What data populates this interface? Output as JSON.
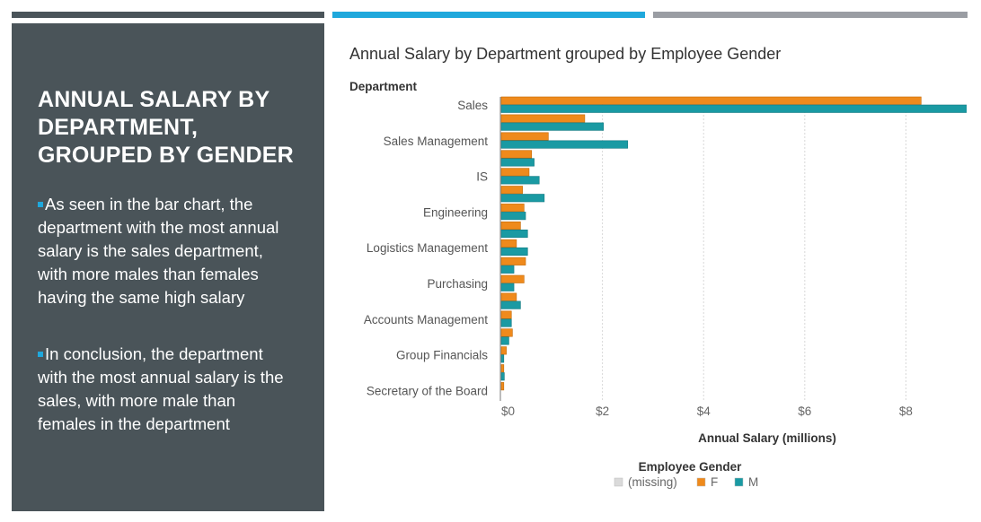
{
  "theme": {
    "panel_bg": "#4a5459",
    "accent_dark": "#4a5459",
    "accent_blue": "#1fa8dc",
    "accent_gray": "#9a9da3",
    "bullet_color": "#1fa8dc",
    "series_colors": {
      "missing": "#dadada",
      "F": "#ef8a1c",
      "M": "#1a9aa3"
    }
  },
  "left": {
    "title": "ANNUAL SALARY BY DEPARTMENT, GROUPED BY GENDER",
    "bullets": [
      "As seen in the bar chart, the department with the most annual salary is the sales department, with more males than females having the same high salary",
      "In conclusion, the department with the most annual salary is the sales, with more male than females in the department"
    ]
  },
  "chart_data": {
    "type": "bar",
    "orientation": "horizontal",
    "title": "Annual Salary by Department grouped by Employee Gender",
    "ylabel": "Department",
    "xlabel": "Annual Salary (millions)",
    "xlim": [
      0,
      9.2
    ],
    "xticks": [
      0,
      2,
      4,
      6,
      8
    ],
    "xtick_labels": [
      "$0",
      "$2",
      "$4",
      "$6",
      "$8"
    ],
    "grid": "vertical",
    "legend_title": "Employee Gender",
    "legend_position": "bottom",
    "legend": [
      "(missing)",
      "F",
      "M"
    ],
    "categories": [
      "Sales",
      "",
      "Sales Management",
      "",
      "IS",
      "",
      "Engineering",
      "",
      "Logistics Management",
      "",
      "Purchasing",
      "",
      "Accounts Management",
      "",
      "Group Financials",
      "",
      "Secretary of the Board"
    ],
    "series": [
      {
        "name": "F",
        "values": [
          8.3,
          1.65,
          0.93,
          0.6,
          0.55,
          0.42,
          0.45,
          0.38,
          0.3,
          0.48,
          0.45,
          0.3,
          0.2,
          0.22,
          0.1,
          0.05,
          0.05
        ]
      },
      {
        "name": "M",
        "values": [
          9.2,
          2.02,
          2.5,
          0.65,
          0.75,
          0.85,
          0.48,
          0.52,
          0.52,
          0.25,
          0.25,
          0.38,
          0.2,
          0.15,
          0.05,
          0.06,
          0.0
        ]
      }
    ]
  }
}
